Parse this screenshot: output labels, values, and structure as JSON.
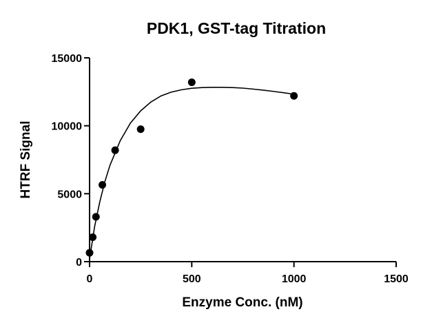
{
  "chart_data": {
    "type": "scatter",
    "title": "PDK1, GST-tag Titration",
    "xlabel": "Enzyme Conc. (nM)",
    "ylabel": "HTRF Signal",
    "xlim": [
      0,
      1500
    ],
    "ylim": [
      0,
      15000
    ],
    "x_ticks": [
      "0",
      "500",
      "1000",
      "1500"
    ],
    "y_ticks": [
      "0",
      "5000",
      "10000",
      "15000"
    ],
    "grid": false,
    "legend": "none",
    "marker_color": "#000000",
    "series": [
      {
        "x": [
          0,
          15.6,
          31.25,
          62.5,
          125,
          250,
          500,
          1000
        ],
        "y": [
          650,
          1800,
          3300,
          5650,
          8200,
          9750,
          13200,
          12200
        ]
      }
    ],
    "fit_curve": {
      "x": [
        0,
        25,
        50,
        75,
        100,
        150,
        200,
        250,
        300,
        350,
        400,
        450,
        500,
        550,
        600,
        650,
        700,
        750,
        800,
        850,
        900,
        950,
        1000
      ],
      "y": [
        200,
        2600,
        4400,
        5900,
        7100,
        8900,
        10200,
        11100,
        11750,
        12200,
        12480,
        12650,
        12760,
        12810,
        12830,
        12830,
        12810,
        12770,
        12700,
        12620,
        12530,
        12430,
        12320
      ]
    }
  }
}
